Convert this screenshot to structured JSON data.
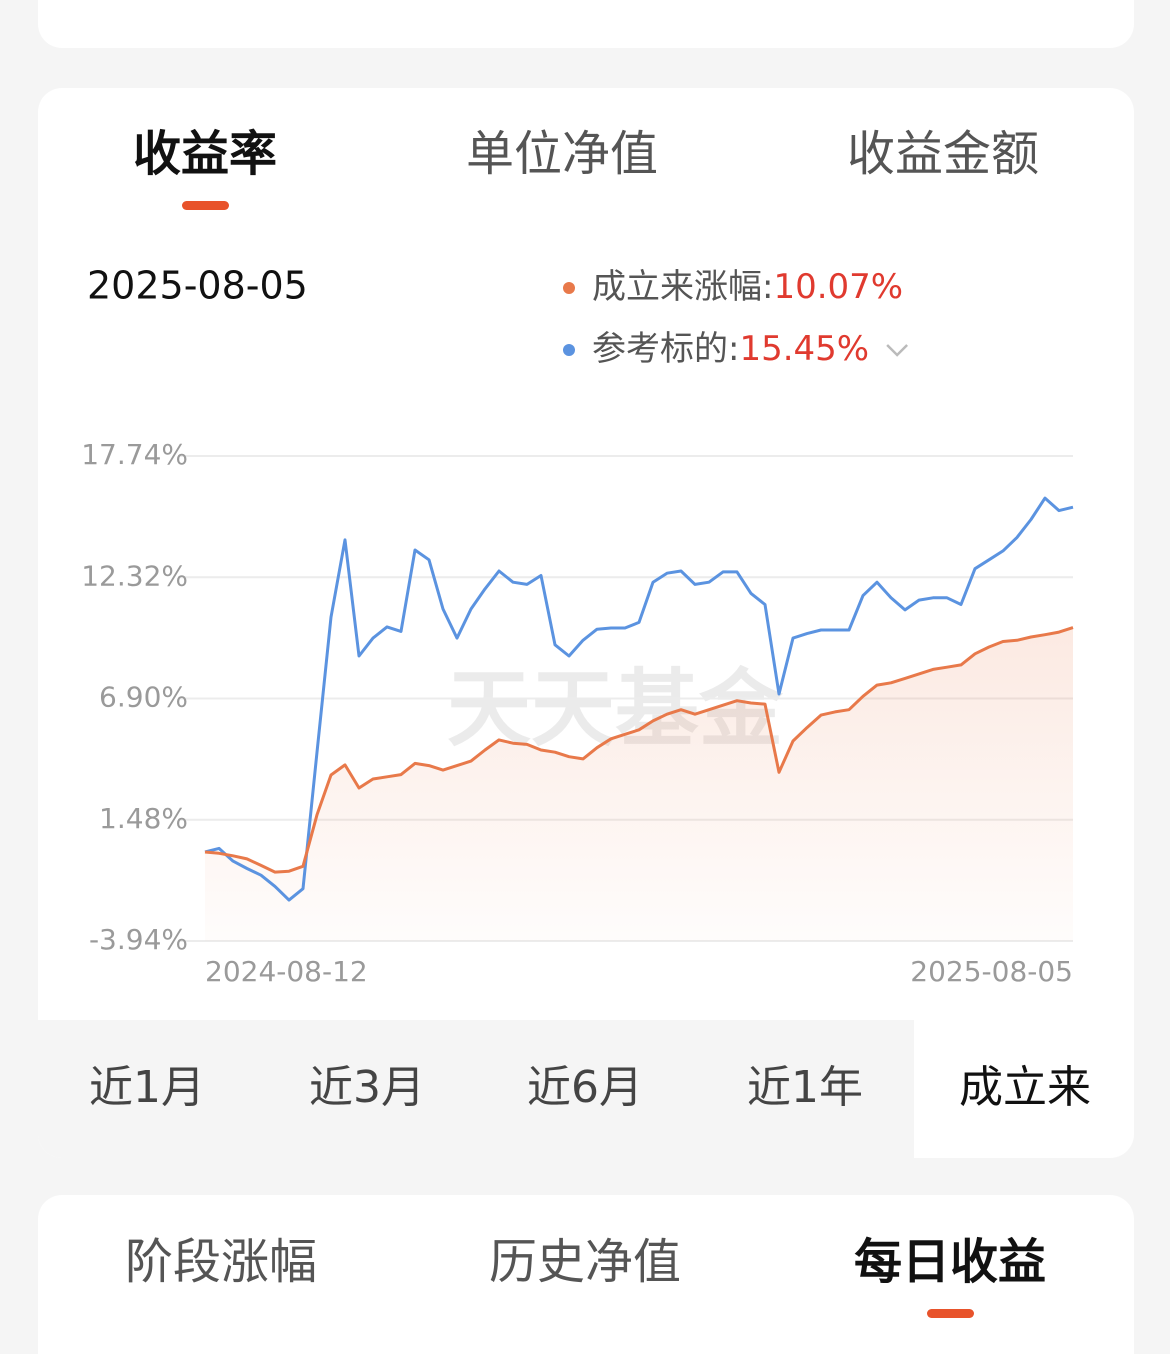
{
  "top_tabs": {
    "items": [
      "收益率",
      "单位净值",
      "收益金额"
    ],
    "active": 0
  },
  "chart_data": {
    "type": "line",
    "selected_date": "2025-08-05",
    "watermark": "天天基金",
    "categories": [
      "2024-08-12",
      null,
      null,
      null,
      null,
      null,
      null,
      null,
      null,
      null,
      null,
      null,
      null,
      null,
      null,
      null,
      null,
      null,
      null,
      null,
      null,
      null,
      null,
      null,
      null,
      null,
      null,
      null,
      null,
      null,
      null,
      null,
      null,
      null,
      null,
      null,
      null,
      null,
      null,
      null,
      null,
      null,
      null,
      null,
      null,
      null,
      null,
      null,
      null,
      null,
      null,
      null,
      null,
      null,
      null,
      null,
      null,
      null,
      null,
      null,
      null,
      null,
      "2025-08-05"
    ],
    "series": [
      {
        "name": "成立来涨幅:",
        "color": "#e8794a",
        "fill_area": true,
        "value_label": "10.07%",
        "values": [
          0.04,
          -0.02,
          -0.13,
          -0.27,
          -0.56,
          -0.86,
          -0.82,
          -0.6,
          1.7,
          3.48,
          3.93,
          2.9,
          3.3,
          3.4,
          3.5,
          4.0,
          3.9,
          3.7,
          3.9,
          4.1,
          4.6,
          5.05,
          4.9,
          4.85,
          4.6,
          4.5,
          4.3,
          4.2,
          4.7,
          5.1,
          5.3,
          5.5,
          5.9,
          6.2,
          6.4,
          6.2,
          6.4,
          6.6,
          6.8,
          6.7,
          6.65,
          3.6,
          5.0,
          5.6,
          6.16,
          6.3,
          6.4,
          7.0,
          7.5,
          7.6,
          7.8,
          8.0,
          8.2,
          8.3,
          8.4,
          8.9,
          9.2,
          9.45,
          9.5,
          9.65,
          9.75,
          9.87,
          10.07
        ]
      },
      {
        "name": "参考标的:",
        "color": "#5b93e0",
        "fill_area": false,
        "value_label": "15.45%",
        "values": [
          0.04,
          0.2,
          -0.37,
          -0.7,
          -1.0,
          -1.5,
          -2.11,
          -1.6,
          4.5,
          10.54,
          13.99,
          8.8,
          9.6,
          10.1,
          9.9,
          13.54,
          13.1,
          10.9,
          9.6,
          10.9,
          11.8,
          12.6,
          12.1,
          12.0,
          12.4,
          9.3,
          8.8,
          9.5,
          10.0,
          10.05,
          10.05,
          10.3,
          12.1,
          12.5,
          12.6,
          12.0,
          12.1,
          12.56,
          12.56,
          11.6,
          11.1,
          7.1,
          9.6,
          9.8,
          9.96,
          9.96,
          9.96,
          11.5,
          12.1,
          11.4,
          10.86,
          11.3,
          11.4,
          11.4,
          11.1,
          12.7,
          13.1,
          13.5,
          14.1,
          14.9,
          15.86,
          15.3,
          15.45
        ]
      }
    ],
    "ylim": [
      -3.94,
      17.74
    ],
    "yticks": [
      {
        "value": 17.74,
        "label": "17.74%"
      },
      {
        "value": 12.32,
        "label": "12.32%"
      },
      {
        "value": 6.9,
        "label": "6.90%"
      },
      {
        "value": 1.48,
        "label": "1.48%"
      },
      {
        "value": -3.94,
        "label": "-3.94%"
      }
    ],
    "grid": true,
    "value_label_color": "#e03a2f"
  },
  "range_tabs": {
    "items": [
      "近1月",
      "近3月",
      "近6月",
      "近1年",
      "成立来"
    ],
    "active": 4
  },
  "bottom_tabs": {
    "items": [
      "阶段涨幅",
      "历史净值",
      "每日收益"
    ],
    "active": 2
  }
}
